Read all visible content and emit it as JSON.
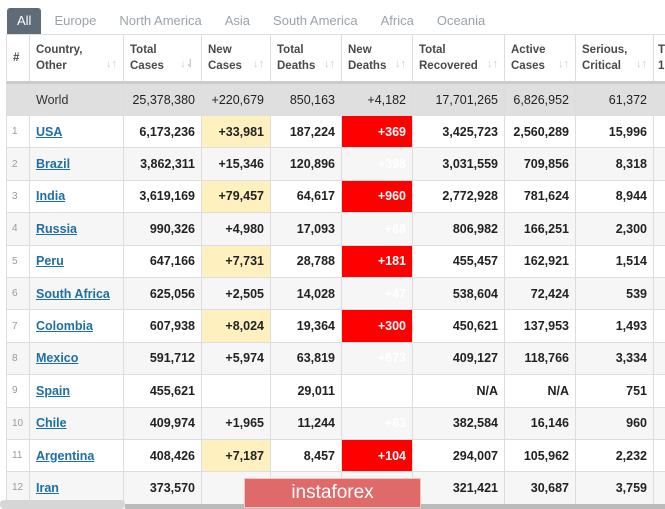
{
  "tabs": [
    "All",
    "Europe",
    "North America",
    "Asia",
    "South America",
    "Africa",
    "Oceania"
  ],
  "headers": [
    "#",
    "Country,\nOther",
    "Total\nCases",
    "New\nCases",
    "Total\nDeaths",
    "New\nDeaths",
    "Total\nRecovered",
    "Active\nCases",
    "Serious,\nCritical",
    "T\n1"
  ],
  "world": {
    "country": "World",
    "total_cases": "25,378,380",
    "new_cases": "+220,679",
    "total_deaths": "850,163",
    "new_deaths": "+4,182",
    "total_recovered": "17,701,265",
    "active_cases": "6,826,952",
    "serious": "61,372"
  },
  "rows": [
    [
      "1",
      "USA",
      "6,173,236",
      "+33,981",
      "187,224",
      "+369",
      "3,425,723",
      "2,560,289",
      "15,996"
    ],
    [
      "2",
      "Brazil",
      "3,862,311",
      "+15,346",
      "120,896",
      "+398",
      "3,031,559",
      "709,856",
      "8,318"
    ],
    [
      "3",
      "India",
      "3,619,169",
      "+79,457",
      "64,617",
      "+960",
      "2,772,928",
      "781,624",
      "8,944"
    ],
    [
      "4",
      "Russia",
      "990,326",
      "+4,980",
      "17,093",
      "+68",
      "806,982",
      "166,251",
      "2,300"
    ],
    [
      "5",
      "Peru",
      "647,166",
      "+7,731",
      "28,788",
      "+181",
      "455,457",
      "162,921",
      "1,514"
    ],
    [
      "6",
      "South Africa",
      "625,056",
      "+2,505",
      "14,028",
      "+47",
      "538,604",
      "72,424",
      "539"
    ],
    [
      "7",
      "Colombia",
      "607,938",
      "+8,024",
      "19,364",
      "+300",
      "450,621",
      "137,953",
      "1,493"
    ],
    [
      "8",
      "Mexico",
      "591,712",
      "+5,974",
      "63,819",
      "+673",
      "409,127",
      "118,766",
      "3,334"
    ],
    [
      "9",
      "Spain",
      "455,621",
      "",
      "29,011",
      "",
      "N/A",
      "N/A",
      "751"
    ],
    [
      "10",
      "Chile",
      "409,974",
      "+1,965",
      "11,244",
      "+63",
      "382,584",
      "16,146",
      "960"
    ],
    [
      "11",
      "Argentina",
      "408,426",
      "+7,187",
      "8,457",
      "+104",
      "294,007",
      "105,962",
      "2,232"
    ],
    [
      "12",
      "Iran",
      "373,570",
      "+1,",
      "",
      "",
      "321,421",
      "30,687",
      "3,759"
    ]
  ],
  "watermark": "instaforex"
}
